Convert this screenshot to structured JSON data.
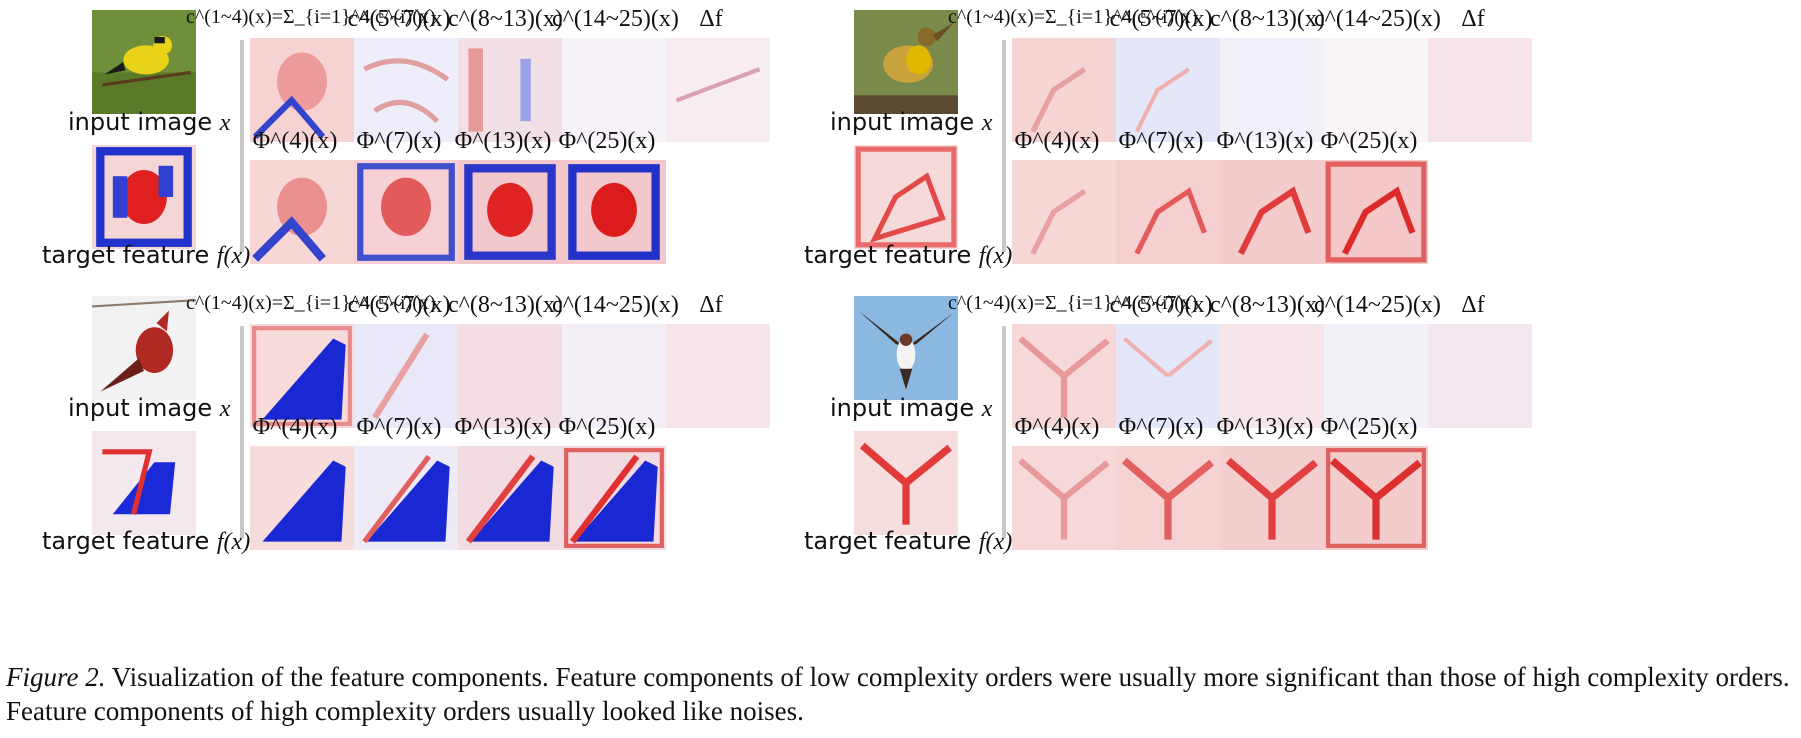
{
  "panel_labels": {
    "input": "input image",
    "input_var": "x",
    "target": "target feature",
    "target_var": "f(x)"
  },
  "component_headers": [
    "c^(1~4)(x)=Σ_{i=1}^4 c^(i)(x)",
    "c^(5~7)(x)",
    "c^(8~13)(x)",
    "c^(14~25)(x)",
    "Δf"
  ],
  "phi_headers": [
    "Φ^(4)(x)",
    "Φ^(7)(x)",
    "Φ^(13)(x)",
    "Φ^(25)(x)"
  ],
  "panels": [
    {
      "bird": "goldfinch",
      "colors": {
        "body": "#e8d21a",
        "bg": "#6f8f3a",
        "accent": "#1a1a1a"
      }
    },
    {
      "bird": "meadowlark",
      "colors": {
        "body": "#c8a23a",
        "bg": "#7a8a4a",
        "accent": "#e0b800"
      }
    },
    {
      "bird": "cardinal",
      "colors": {
        "body": "#b02a24",
        "bg": "#f2f2f2",
        "accent": "#6a2018"
      }
    },
    {
      "bird": "swallow",
      "colors": {
        "body": "#3a2a22",
        "bg": "#8ab8e0",
        "accent": "#f4f4f4"
      }
    }
  ],
  "caption": {
    "figure_label": "Figure 2.",
    "text": "Visualization of the feature components. Feature components of low complexity orders were usually more significant than those of high complexity orders. Feature components of high complexity orders usually looked like noises."
  }
}
